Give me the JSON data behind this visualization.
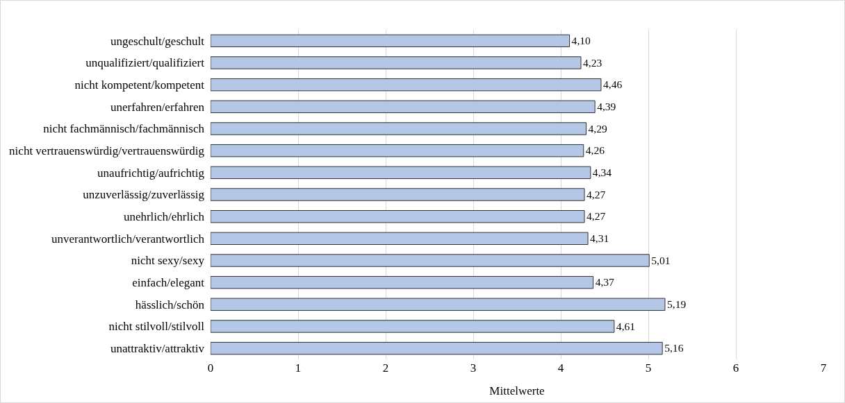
{
  "chart_data": {
    "type": "bar",
    "orientation": "horizontal",
    "xlabel": "Mittelwerte",
    "categories": [
      "ungeschult/geschult",
      "unqualifiziert/qualifiziert",
      "nicht kompetent/kompetent",
      "unerfahren/erfahren",
      "nicht fachmännisch/fachmännisch",
      "nicht vertrauenswürdig/vertrauenswürdig",
      "unaufrichtig/aufrichtig",
      "unzuverlässig/zuverlässig",
      "unehrlich/ehrlich",
      "unverantwortlich/verantwortlich",
      "nicht sexy/sexy",
      "einfach/elegant",
      "hässlich/schön",
      "nicht stilvoll/stilvoll",
      "unattraktiv/attraktiv"
    ],
    "values": [
      4.1,
      4.23,
      4.46,
      4.39,
      4.29,
      4.26,
      4.34,
      4.27,
      4.27,
      4.31,
      5.01,
      4.37,
      5.19,
      4.61,
      5.16
    ],
    "value_labels": [
      "4,10",
      "4,23",
      "4,46",
      "4,39",
      "4,29",
      "4,26",
      "4,34",
      "4,27",
      "4,27",
      "4,31",
      "5,01",
      "4,37",
      "5,19",
      "4,61",
      "5,16"
    ],
    "color": "#b4c7e7",
    "xlim": [
      0,
      7
    ],
    "xticks": [
      0,
      1,
      2,
      3,
      4,
      5,
      6,
      7
    ],
    "grid": "x"
  }
}
